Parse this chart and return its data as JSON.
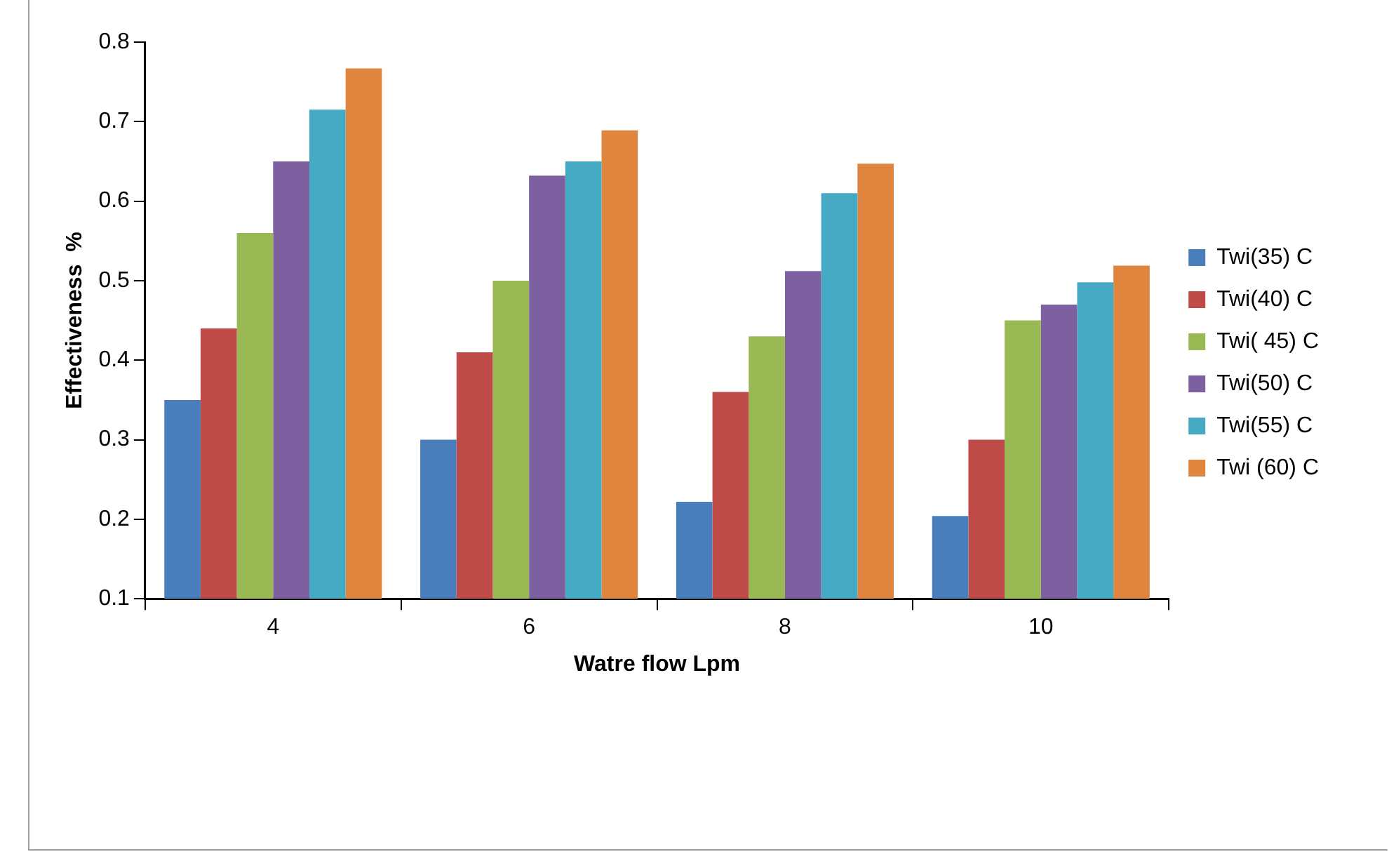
{
  "chart_data": {
    "type": "bar",
    "xlabel": "Watre flow Lpm",
    "ylabel": "Effectiveness  %",
    "categories": [
      "4",
      "6",
      "8",
      "10"
    ],
    "series": [
      {
        "name": "Twi(35) C",
        "color": "#4a7ebb",
        "values": [
          0.35,
          0.3,
          0.222,
          0.204
        ]
      },
      {
        "name": "Twi(40) C",
        "color": "#be4b48",
        "values": [
          0.44,
          0.41,
          0.36,
          0.3
        ]
      },
      {
        "name": "Twi( 45) C",
        "color": "#98b954",
        "values": [
          0.56,
          0.5,
          0.43,
          0.45
        ]
      },
      {
        "name": "Twi(50) C",
        "color": "#7d60a0",
        "values": [
          0.65,
          0.632,
          0.512,
          0.47
        ]
      },
      {
        "name": "Twi(55) C",
        "color": "#46aac5",
        "values": [
          0.715,
          0.65,
          0.61,
          0.498
        ]
      },
      {
        "name": "Twi (60) C",
        "color": "#e0853d",
        "values": [
          0.767,
          0.689,
          0.647,
          0.519
        ]
      }
    ],
    "ylim": [
      0.1,
      0.8
    ],
    "yticks": [
      0.1,
      0.2,
      0.3,
      0.4,
      0.5,
      0.6,
      0.7,
      0.8
    ],
    "legend": "right"
  }
}
